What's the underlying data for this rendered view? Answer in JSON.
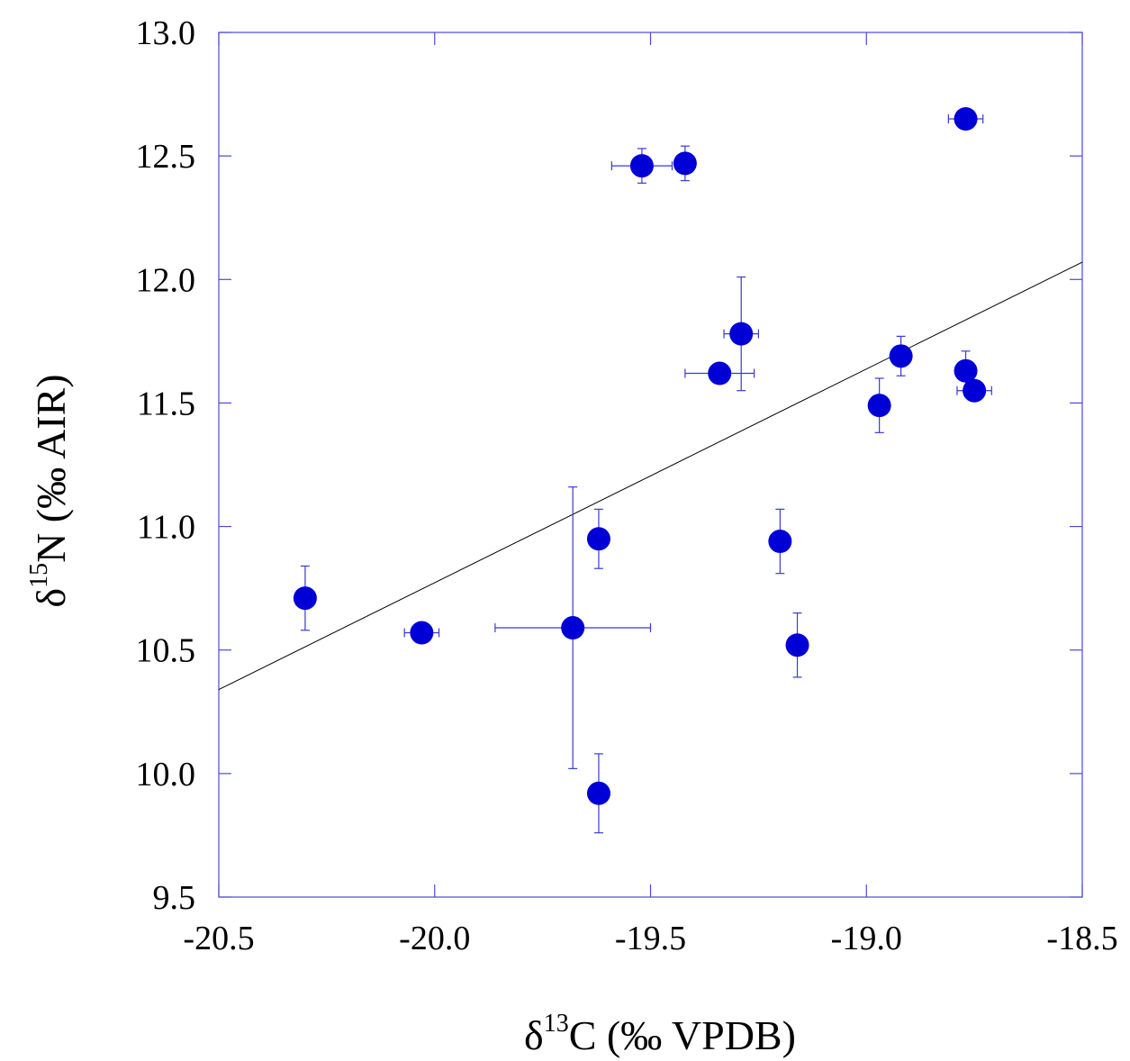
{
  "chart_data": {
    "type": "scatter",
    "xlabel": {
      "prefix": "δ",
      "sup": "13",
      "suffix": "C (‰ VPDB)"
    },
    "ylabel": {
      "prefix": "δ",
      "sup": "15",
      "suffix": "N (‰ AIR)"
    },
    "xlim": [
      -20.5,
      -18.5
    ],
    "ylim": [
      9.5,
      13.0
    ],
    "xticks": [
      -20.5,
      -20.0,
      -19.5,
      -19.0,
      -18.5
    ],
    "xtick_labels": [
      "-20.5",
      "-20.0",
      "-19.5",
      "-19.0",
      "-18.5"
    ],
    "yticks": [
      9.5,
      10.0,
      10.5,
      11.0,
      11.5,
      12.0,
      12.5,
      13.0
    ],
    "ytick_labels": [
      "9.5",
      "10.0",
      "10.5",
      "11.0",
      "11.5",
      "12.0",
      "12.5",
      "13.0"
    ],
    "points": [
      {
        "x": -20.3,
        "y": 10.71,
        "xerr": 0.0,
        "yerr": 0.13
      },
      {
        "x": -20.03,
        "y": 10.57,
        "xerr": 0.04,
        "yerr": 0.0
      },
      {
        "x": -19.68,
        "y": 10.59,
        "xerr": 0.18,
        "yerr": 0.57
      },
      {
        "x": -19.62,
        "y": 10.95,
        "xerr": 0.0,
        "yerr": 0.12
      },
      {
        "x": -19.62,
        "y": 9.92,
        "xerr": 0.0,
        "yerr": 0.16
      },
      {
        "x": -19.52,
        "y": 12.46,
        "xerr": 0.07,
        "yerr": 0.07
      },
      {
        "x": -19.42,
        "y": 12.47,
        "xerr": 0.0,
        "yerr": 0.07
      },
      {
        "x": -19.34,
        "y": 11.62,
        "xerr": 0.08,
        "yerr": 0.0
      },
      {
        "x": -19.29,
        "y": 11.78,
        "xerr": 0.04,
        "yerr": 0.23
      },
      {
        "x": -19.2,
        "y": 10.94,
        "xerr": 0.0,
        "yerr": 0.13
      },
      {
        "x": -19.16,
        "y": 10.52,
        "xerr": 0.0,
        "yerr": 0.13
      },
      {
        "x": -18.97,
        "y": 11.49,
        "xerr": 0.0,
        "yerr": 0.11
      },
      {
        "x": -18.92,
        "y": 11.69,
        "xerr": 0.0,
        "yerr": 0.08
      },
      {
        "x": -18.77,
        "y": 12.65,
        "xerr": 0.04,
        "yerr": 0.0
      },
      {
        "x": -18.77,
        "y": 11.63,
        "xerr": 0.0,
        "yerr": 0.08
      },
      {
        "x": -18.75,
        "y": 11.55,
        "xerr": 0.04,
        "yerr": 0.0
      }
    ],
    "fit_line": {
      "x": [
        -20.5,
        -18.5
      ],
      "y": [
        10.34,
        12.07
      ]
    },
    "colors": {
      "point": "#0000d6",
      "errorbar": "#3a3ad0",
      "axis": "#4a4ad8",
      "fit": "#000000"
    }
  }
}
